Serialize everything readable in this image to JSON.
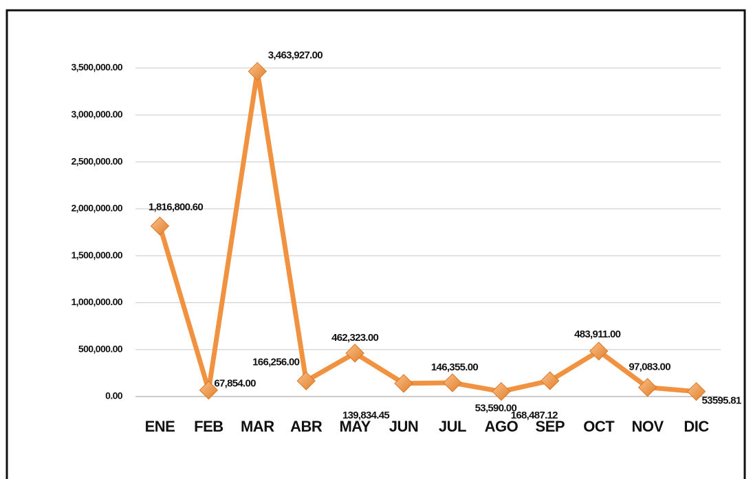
{
  "chart_data": {
    "type": "line",
    "categories": [
      "ENE",
      "FEB",
      "MAR",
      "ABR",
      "MAY",
      "JUN",
      "JUL",
      "AGO",
      "SEP",
      "OCT",
      "NOV",
      "DIC"
    ],
    "series": [
      {
        "color": "#f0923f",
        "values": [
          1816800.6,
          67854.0,
          3463927.0,
          166256.0,
          462323.0,
          139834.45,
          146355.0,
          53590.0,
          168487.12,
          483911.0,
          97083.0,
          53595.81
        ],
        "value_labels": [
          "1,816,800.60",
          "67,854.00",
          "3,463,927.00",
          "166,256.00",
          "462,323.00",
          "139,834.45",
          "146,355.00",
          "53,590.00",
          "168,487.12",
          "483,911.00",
          "97,083.00",
          "53595.81"
        ]
      }
    ],
    "ylim": [
      0,
      3500000
    ],
    "yticks": [
      {
        "value": 0,
        "label": "0.00"
      },
      {
        "value": 500000,
        "label": "500,000.00"
      },
      {
        "value": 1000000,
        "label": "1,000,000.00"
      },
      {
        "value": 1500000,
        "label": "1,500,000.00"
      },
      {
        "value": 2000000,
        "label": "2,000,000.00"
      },
      {
        "value": 2500000,
        "label": "2,500,000.00"
      },
      {
        "value": 3000000,
        "label": "3,000,000.00"
      },
      {
        "value": 3500000,
        "label": "3,500,000.00"
      }
    ],
    "grid": true
  }
}
